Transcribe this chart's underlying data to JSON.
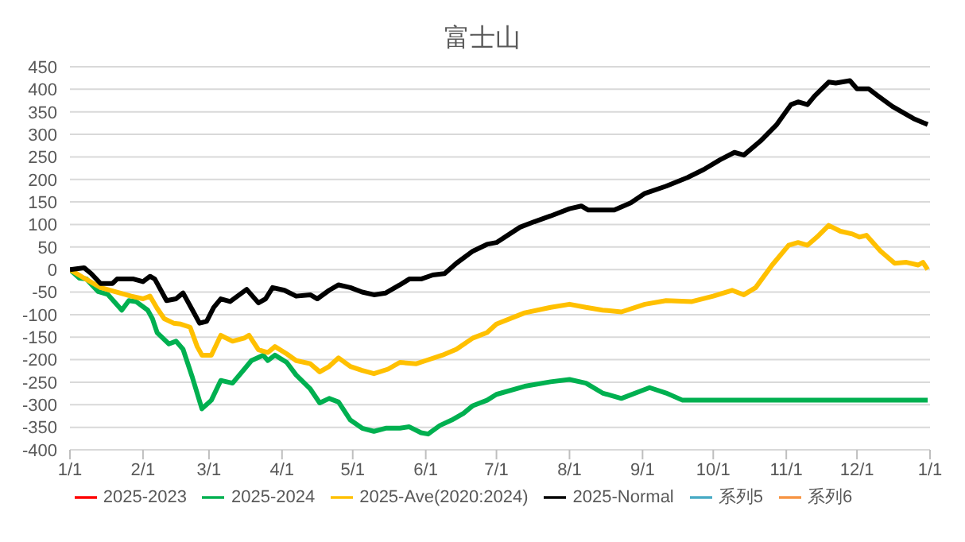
{
  "chart_data": {
    "type": "line",
    "title": "富士山",
    "xlim": [
      "2025-01-01",
      "2026-01-01"
    ],
    "xticks": [
      {
        "value": "2025-01-01",
        "label": "1/1"
      },
      {
        "value": "2025-02-01",
        "label": "2/1"
      },
      {
        "value": "2025-03-01",
        "label": "3/1"
      },
      {
        "value": "2025-04-01",
        "label": "4/1"
      },
      {
        "value": "2025-05-01",
        "label": "5/1"
      },
      {
        "value": "2025-06-01",
        "label": "6/1"
      },
      {
        "value": "2025-07-01",
        "label": "7/1"
      },
      {
        "value": "2025-08-01",
        "label": "8/1"
      },
      {
        "value": "2025-09-01",
        "label": "9/1"
      },
      {
        "value": "2025-10-01",
        "label": "10/1"
      },
      {
        "value": "2025-11-01",
        "label": "11/1"
      },
      {
        "value": "2025-12-01",
        "label": "12/1"
      },
      {
        "value": "2026-01-01",
        "label": "1/1"
      }
    ],
    "ylim": [
      -400,
      450
    ],
    "yticks": [
      -400,
      -350,
      -300,
      -250,
      -200,
      -150,
      -100,
      -50,
      0,
      50,
      100,
      150,
      200,
      250,
      300,
      350,
      400,
      450
    ],
    "grid": "y",
    "legend": "bottom",
    "marker": "none",
    "line_style": "solid",
    "series": [
      {
        "name": "2025-2023",
        "color": "#ff0000"
      },
      {
        "name": "2025-2024",
        "color": "#00b050",
        "x": [
          "2025-01-01",
          "2025-01-05",
          "2025-01-08",
          "2025-01-13",
          "2025-01-17",
          "2025-01-23",
          "2025-01-26",
          "2025-01-29",
          "2025-02-03",
          "2025-02-05",
          "2025-02-07",
          "2025-02-12",
          "2025-02-15",
          "2025-02-18",
          "2025-02-22",
          "2025-02-26",
          "2025-03-02",
          "2025-03-06",
          "2025-03-11",
          "2025-03-16",
          "2025-03-19",
          "2025-03-24",
          "2025-03-26",
          "2025-03-29",
          "2025-04-03",
          "2025-04-07",
          "2025-04-13",
          "2025-04-17",
          "2025-04-21",
          "2025-04-25",
          "2025-04-30",
          "2025-05-05",
          "2025-05-10",
          "2025-05-15",
          "2025-05-21",
          "2025-05-25",
          "2025-05-30",
          "2025-06-02",
          "2025-06-07",
          "2025-06-12",
          "2025-06-17",
          "2025-06-21",
          "2025-06-27",
          "2025-07-01",
          "2025-07-13",
          "2025-07-24",
          "2025-08-01",
          "2025-08-08",
          "2025-08-15",
          "2025-08-23",
          "2025-09-04",
          "2025-09-11",
          "2025-09-18",
          "2025-12-31"
        ],
        "values": [
          0,
          -19,
          -21,
          -49,
          -55,
          -90,
          -69,
          -71,
          -90,
          -109,
          -140,
          -165,
          -159,
          -177,
          -240,
          -309,
          -290,
          -246,
          -252,
          -221,
          -202,
          -190,
          -202,
          -190,
          -206,
          -234,
          -265,
          -296,
          -286,
          -294,
          -334,
          -352,
          -359,
          -352,
          -352,
          -349,
          -362,
          -365,
          -346,
          -334,
          -319,
          -302,
          -290,
          -277,
          -259,
          -249,
          -244,
          -252,
          -274,
          -286,
          -262,
          -274,
          -290,
          -290
        ]
      },
      {
        "name": "2025-Ave(2020:2024)",
        "color": "#ffc000",
        "x": [
          "2025-01-01",
          "2025-01-07",
          "2025-01-14",
          "2025-01-20",
          "2025-01-27",
          "2025-02-01",
          "2025-02-04",
          "2025-02-07",
          "2025-02-10",
          "2025-02-14",
          "2025-02-17",
          "2025-02-21",
          "2025-02-24",
          "2025-02-26",
          "2025-03-02",
          "2025-03-06",
          "2025-03-11",
          "2025-03-16",
          "2025-03-18",
          "2025-03-22",
          "2025-03-26",
          "2025-03-29",
          "2025-04-03",
          "2025-04-07",
          "2025-04-13",
          "2025-04-17",
          "2025-04-21",
          "2025-04-25",
          "2025-04-30",
          "2025-05-05",
          "2025-05-10",
          "2025-05-16",
          "2025-05-21",
          "2025-05-28",
          "2025-06-01",
          "2025-06-08",
          "2025-06-14",
          "2025-06-21",
          "2025-06-27",
          "2025-07-01",
          "2025-07-13",
          "2025-07-24",
          "2025-08-01",
          "2025-08-08",
          "2025-08-15",
          "2025-08-23",
          "2025-09-02",
          "2025-09-11",
          "2025-09-22",
          "2025-10-01",
          "2025-10-09",
          "2025-10-14",
          "2025-10-19",
          "2025-10-26",
          "2025-11-02",
          "2025-11-06",
          "2025-11-10",
          "2025-11-14",
          "2025-11-19",
          "2025-11-24",
          "2025-11-29",
          "2025-12-02",
          "2025-12-05",
          "2025-12-11",
          "2025-12-17",
          "2025-12-22",
          "2025-12-27",
          "2025-12-29",
          "2025-12-31"
        ],
        "values": [
          0,
          -19,
          -40,
          -49,
          -59,
          -65,
          -59,
          -86,
          -109,
          -119,
          -121,
          -128,
          -171,
          -190,
          -190,
          -146,
          -159,
          -152,
          -146,
          -178,
          -184,
          -171,
          -187,
          -202,
          -209,
          -227,
          -215,
          -196,
          -215,
          -224,
          -231,
          -221,
          -206,
          -209,
          -202,
          -190,
          -177,
          -152,
          -140,
          -121,
          -96,
          -84,
          -77,
          -84,
          -90,
          -94,
          -77,
          -69,
          -71,
          -59,
          -46,
          -56,
          -40,
          10,
          54,
          60,
          54,
          72,
          98,
          85,
          79,
          72,
          76,
          41,
          14,
          16,
          10,
          16,
          0
        ]
      },
      {
        "name": "2025-Normal",
        "color": "#000000",
        "x": [
          "2025-01-01",
          "2025-01-07",
          "2025-01-10",
          "2025-01-14",
          "2025-01-19",
          "2025-01-21",
          "2025-01-28",
          "2025-02-01",
          "2025-02-04",
          "2025-02-06",
          "2025-02-11",
          "2025-02-15",
          "2025-02-18",
          "2025-02-22",
          "2025-02-25",
          "2025-02-28",
          "2025-03-03",
          "2025-03-06",
          "2025-03-10",
          "2025-03-17",
          "2025-03-22",
          "2025-03-25",
          "2025-03-28",
          "2025-04-02",
          "2025-04-07",
          "2025-04-13",
          "2025-04-16",
          "2025-04-21",
          "2025-04-25",
          "2025-04-30",
          "2025-05-05",
          "2025-05-10",
          "2025-05-15",
          "2025-05-21",
          "2025-05-25",
          "2025-05-30",
          "2025-06-04",
          "2025-06-09",
          "2025-06-14",
          "2025-06-21",
          "2025-06-27",
          "2025-07-01",
          "2025-07-11",
          "2025-07-17",
          "2025-07-24",
          "2025-08-01",
          "2025-08-06",
          "2025-08-09",
          "2025-08-20",
          "2025-08-27",
          "2025-09-02",
          "2025-09-11",
          "2025-09-20",
          "2025-09-27",
          "2025-10-04",
          "2025-10-10",
          "2025-10-14",
          "2025-10-21",
          "2025-10-28",
          "2025-11-03",
          "2025-11-06",
          "2025-11-10",
          "2025-11-13",
          "2025-11-19",
          "2025-11-22",
          "2025-11-28",
          "2025-12-01",
          "2025-12-06",
          "2025-12-10",
          "2025-12-16",
          "2025-12-21",
          "2025-12-25",
          "2025-12-29",
          "2025-12-31"
        ],
        "values": [
          0,
          4,
          -9,
          -31,
          -31,
          -21,
          -21,
          -27,
          -15,
          -21,
          -69,
          -65,
          -52,
          -90,
          -119,
          -115,
          -84,
          -65,
          -71,
          -44,
          -74,
          -65,
          -40,
          -46,
          -59,
          -56,
          -65,
          -46,
          -34,
          -40,
          -50,
          -56,
          -52,
          -34,
          -21,
          -21,
          -12,
          -9,
          14,
          41,
          56,
          60,
          94,
          106,
          119,
          135,
          141,
          132,
          132,
          148,
          169,
          185,
          204,
          222,
          244,
          260,
          254,
          285,
          322,
          366,
          372,
          366,
          385,
          416,
          414,
          419,
          401,
          401,
          385,
          362,
          347,
          335,
          326,
          322
        ]
      },
      {
        "name": "系列5",
        "color": "#4bacc6"
      },
      {
        "name": "系列6",
        "color": "#f79646"
      }
    ]
  }
}
